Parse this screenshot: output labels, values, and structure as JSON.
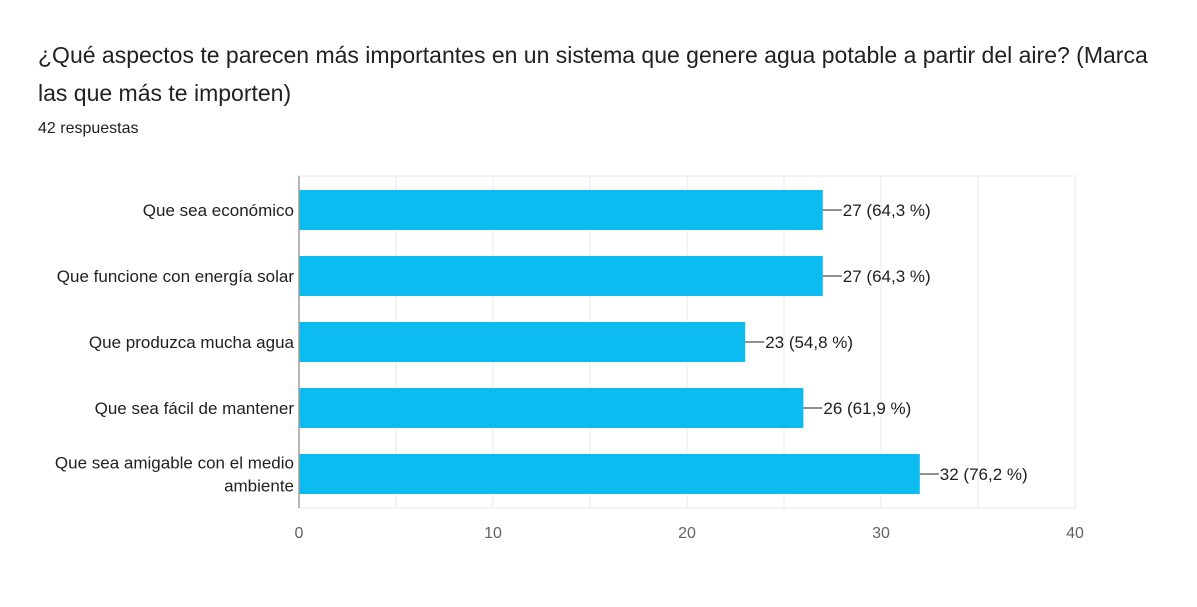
{
  "question": {
    "title": "¿Qué aspectos te parecen más importantes en un sistema que genere agua potable a partir del aire? (Marca las que más te importen)",
    "responses": "42 respuestas"
  },
  "colors": {
    "bar": "#0cbbef",
    "grid": "#e8eaed",
    "axis": "#9e9e9e",
    "text": "#212121",
    "tick": "#5f6368"
  },
  "chart_data": {
    "type": "bar",
    "orientation": "horizontal",
    "categories": [
      [
        "Que sea económico"
      ],
      [
        "Que funcione con energía solar"
      ],
      [
        "Que produzca mucha agua"
      ],
      [
        "Que sea fácil de mantener"
      ],
      [
        "Que sea amigable con el medio",
        "ambiente"
      ]
    ],
    "values": [
      27,
      27,
      23,
      26,
      32
    ],
    "data_labels": [
      "27 (64,3 %)",
      "27 (64,3 %)",
      "23 (54,8 %)",
      "26 (61,9 %)",
      "32 (76,2 %)"
    ],
    "xlim": [
      0,
      40
    ],
    "xticks": [
      0,
      10,
      20,
      30,
      40
    ],
    "grid": true
  }
}
